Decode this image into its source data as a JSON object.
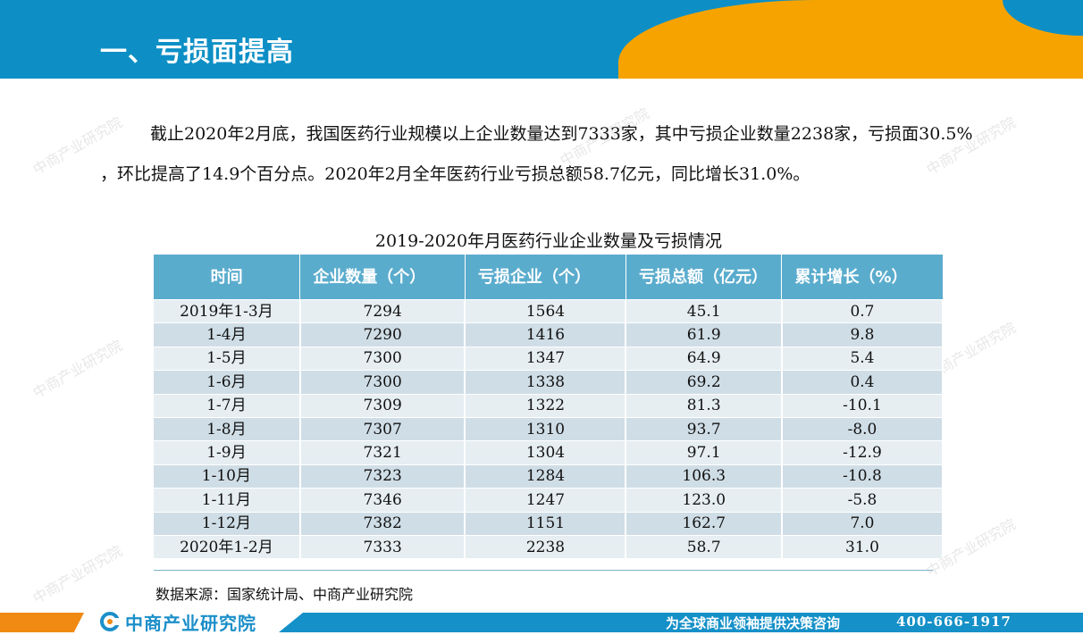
{
  "header": {
    "title": "一、亏损面提高"
  },
  "paragraph": "截止2020年2月底，我国医药行业规模以上企业数量达到7333家，其中亏损企业数量2238家，亏损面30.5% ，环比提高了14.9个百分点。2020年2月全年医药行业亏损总额58.7亿元，同比增长31.0%。",
  "table": {
    "caption": "2019-2020年月医药行业企业数量及亏损情况",
    "headers": [
      "时间",
      "企业数量（个）",
      "亏损企业（个）",
      "亏损总额（亿元）",
      "累计增长（%）"
    ],
    "rows": [
      [
        "2019年1-3月",
        "7294",
        "1564",
        "45.1",
        "0.7"
      ],
      [
        "1-4月",
        "7290",
        "1416",
        "61.9",
        "9.8"
      ],
      [
        "1-5月",
        "7300",
        "1347",
        "64.9",
        "5.4"
      ],
      [
        "1-6月",
        "7300",
        "1338",
        "69.2",
        "0.4"
      ],
      [
        "1-7月",
        "7309",
        "1322",
        "81.3",
        "-10.1"
      ],
      [
        "1-8月",
        "7307",
        "1310",
        "93.7",
        "-8.0"
      ],
      [
        "1-9月",
        "7321",
        "1304",
        "97.1",
        "-12.9"
      ],
      [
        "1-10月",
        "7323",
        "1284",
        "106.3",
        "-10.8"
      ],
      [
        "1-11月",
        "7346",
        "1247",
        "123.0",
        "-5.8"
      ],
      [
        "1-12月",
        "7382",
        "1151",
        "162.7",
        "7.0"
      ],
      [
        "2020年1-2月",
        "7333",
        "2238",
        "58.7",
        "31.0"
      ]
    ]
  },
  "source": "数据来源：国家统计局、中商产业研究院",
  "footer": {
    "logo_text": "中商产业研究院",
    "slogan": "为全球商业领袖提供决策咨询",
    "phone": "400-666-1917"
  },
  "colors": {
    "header_blue": "#0d8fc6",
    "header_orange": "#f6a300",
    "table_header": "#5aaccd"
  }
}
